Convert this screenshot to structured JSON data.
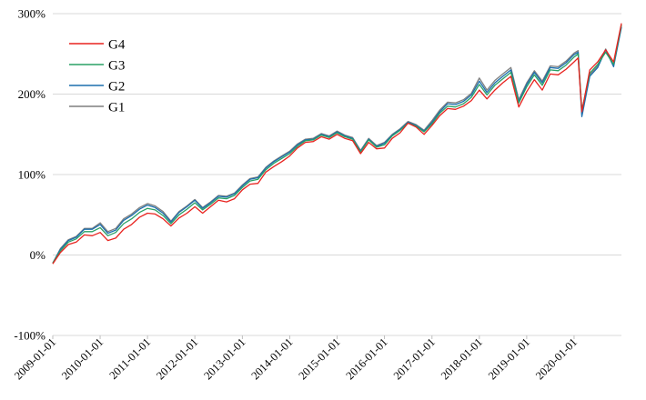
{
  "chart_data": {
    "type": "line",
    "title": "",
    "xlabel": "",
    "ylabel": "",
    "ylim": [
      -100,
      300
    ],
    "y_ticks": [
      -100,
      0,
      100,
      200,
      300
    ],
    "y_tick_labels": [
      "-100%",
      "0%",
      "100%",
      "200%",
      "300%"
    ],
    "x_range": [
      "2009-01-01",
      "2020-12-31"
    ],
    "x_ticks": [
      "2009-01-01",
      "2010-01-01",
      "2011-01-01",
      "2012-01-01",
      "2013-01-01",
      "2014-01-01",
      "2015-01-01",
      "2016-01-01",
      "2017-01-01",
      "2018-01-01",
      "2019-01-01",
      "2020-01-01"
    ],
    "x_tick_labels": [
      "2009-01-01",
      "2010-01-01",
      "2011-01-01",
      "2012-01-01",
      "2013-01-01",
      "2014-01-01",
      "2015-01-01",
      "2016-01-01",
      "2017-01-01",
      "2018-01-01",
      "2019-01-01",
      "2020-01-01"
    ],
    "grid": "horizontal",
    "legend_position": "top-left",
    "colors": {
      "G4": "#e8231f",
      "G3": "#29a065",
      "G2": "#1b6fae",
      "G1": "#7f7f7f"
    },
    "series": [
      {
        "name": "G4",
        "x": [
          "2009-01-01",
          "2009-03-01",
          "2009-05-01",
          "2009-07-01",
          "2009-09-01",
          "2009-11-01",
          "2010-01-01",
          "2010-03-01",
          "2010-05-01",
          "2010-07-01",
          "2010-09-01",
          "2010-11-01",
          "2011-01-01",
          "2011-03-01",
          "2011-05-01",
          "2011-07-01",
          "2011-09-01",
          "2011-11-01",
          "2012-01-01",
          "2012-03-01",
          "2012-05-01",
          "2012-07-01",
          "2012-09-01",
          "2012-11-01",
          "2013-01-01",
          "2013-03-01",
          "2013-05-01",
          "2013-07-01",
          "2013-09-01",
          "2013-11-01",
          "2014-01-01",
          "2014-03-01",
          "2014-05-01",
          "2014-07-01",
          "2014-09-01",
          "2014-11-01",
          "2015-01-01",
          "2015-03-01",
          "2015-05-01",
          "2015-07-01",
          "2015-09-01",
          "2015-11-01",
          "2016-01-01",
          "2016-03-01",
          "2016-05-01",
          "2016-07-01",
          "2016-09-01",
          "2016-11-01",
          "2017-01-01",
          "2017-03-01",
          "2017-05-01",
          "2017-07-01",
          "2017-09-01",
          "2017-11-01",
          "2018-01-01",
          "2018-03-01",
          "2018-05-01",
          "2018-07-01",
          "2018-09-01",
          "2018-11-01",
          "2019-01-01",
          "2019-03-01",
          "2019-05-01",
          "2019-07-01",
          "2019-09-01",
          "2019-11-01",
          "2020-01-01",
          "2020-02-01",
          "2020-03-01",
          "2020-05-01",
          "2020-07-01",
          "2020-09-01",
          "2020-11-01",
          "2020-12-31"
        ],
        "values": [
          -11,
          3,
          13,
          16,
          25,
          24,
          28,
          18,
          21,
          32,
          38,
          47,
          52,
          51,
          45,
          36,
          46,
          52,
          60,
          52,
          60,
          68,
          66,
          70,
          81,
          88,
          89,
          103,
          110,
          116,
          123,
          133,
          140,
          141,
          147,
          144,
          150,
          145,
          142,
          126,
          140,
          132,
          133,
          145,
          152,
          164,
          159,
          150,
          161,
          173,
          182,
          181,
          185,
          192,
          205,
          194,
          205,
          214,
          222,
          184,
          203,
          218,
          205,
          225,
          224,
          231,
          240,
          245,
          178,
          230,
          240,
          255,
          240,
          288
        ]
      },
      {
        "name": "G3",
        "x": [
          "2009-01-01",
          "2009-03-01",
          "2009-05-01",
          "2009-07-01",
          "2009-09-01",
          "2009-11-01",
          "2010-01-01",
          "2010-03-01",
          "2010-05-01",
          "2010-07-01",
          "2010-09-01",
          "2010-11-01",
          "2011-01-01",
          "2011-03-01",
          "2011-05-01",
          "2011-07-01",
          "2011-09-01",
          "2011-11-01",
          "2012-01-01",
          "2012-03-01",
          "2012-05-01",
          "2012-07-01",
          "2012-09-01",
          "2012-11-01",
          "2013-01-01",
          "2013-03-01",
          "2013-05-01",
          "2013-07-01",
          "2013-09-01",
          "2013-11-01",
          "2014-01-01",
          "2014-03-01",
          "2014-05-01",
          "2014-07-01",
          "2014-09-01",
          "2014-11-01",
          "2015-01-01",
          "2015-03-01",
          "2015-05-01",
          "2015-07-01",
          "2015-09-01",
          "2015-11-01",
          "2016-01-01",
          "2016-03-01",
          "2016-05-01",
          "2016-07-01",
          "2016-09-01",
          "2016-11-01",
          "2017-01-01",
          "2017-03-01",
          "2017-05-01",
          "2017-07-01",
          "2017-09-01",
          "2017-11-01",
          "2018-01-01",
          "2018-03-01",
          "2018-05-01",
          "2018-07-01",
          "2018-09-01",
          "2018-11-01",
          "2019-01-01",
          "2019-03-01",
          "2019-05-01",
          "2019-07-01",
          "2019-09-01",
          "2019-11-01",
          "2020-01-01",
          "2020-02-01",
          "2020-03-01",
          "2020-05-01",
          "2020-07-01",
          "2020-09-01",
          "2020-11-01",
          "2020-12-31"
        ],
        "values": [
          -10,
          5,
          16,
          20,
          29,
          29,
          34,
          24,
          28,
          39,
          45,
          53,
          58,
          56,
          49,
          39,
          50,
          57,
          65,
          56,
          63,
          71,
          70,
          74,
          84,
          92,
          94,
          106,
          114,
          120,
          126,
          135,
          142,
          143,
          149,
          146,
          152,
          147,
          144,
          128,
          143,
          134,
          137,
          148,
          155,
          164,
          160,
          153,
          163,
          176,
          185,
          184,
          188,
          196,
          212,
          199,
          211,
          219,
          227,
          189,
          209,
          224,
          211,
          230,
          229,
          236,
          246,
          250,
          180,
          226,
          237,
          252,
          237,
          286
        ]
      },
      {
        "name": "G2",
        "x": [
          "2009-01-01",
          "2009-03-01",
          "2009-05-01",
          "2009-07-01",
          "2009-09-01",
          "2009-11-01",
          "2010-01-01",
          "2010-03-01",
          "2010-05-01",
          "2010-07-01",
          "2010-09-01",
          "2010-11-01",
          "2011-01-01",
          "2011-03-01",
          "2011-05-01",
          "2011-07-01",
          "2011-09-01",
          "2011-11-01",
          "2012-01-01",
          "2012-03-01",
          "2012-05-01",
          "2012-07-01",
          "2012-09-01",
          "2012-11-01",
          "2013-01-01",
          "2013-03-01",
          "2013-05-01",
          "2013-07-01",
          "2013-09-01",
          "2013-11-01",
          "2014-01-01",
          "2014-03-01",
          "2014-05-01",
          "2014-07-01",
          "2014-09-01",
          "2014-11-01",
          "2015-01-01",
          "2015-03-01",
          "2015-05-01",
          "2015-07-01",
          "2015-09-01",
          "2015-11-01",
          "2016-01-01",
          "2016-03-01",
          "2016-05-01",
          "2016-07-01",
          "2016-09-01",
          "2016-11-01",
          "2017-01-01",
          "2017-03-01",
          "2017-05-01",
          "2017-07-01",
          "2017-09-01",
          "2017-11-01",
          "2018-01-01",
          "2018-03-01",
          "2018-05-01",
          "2018-07-01",
          "2018-09-01",
          "2018-11-01",
          "2019-01-01",
          "2019-03-01",
          "2019-05-01",
          "2019-07-01",
          "2019-09-01",
          "2019-11-01",
          "2020-01-01",
          "2020-02-01",
          "2020-03-01",
          "2020-05-01",
          "2020-07-01",
          "2020-09-01",
          "2020-11-01",
          "2020-12-31"
        ],
        "values": [
          -10,
          7,
          18,
          22,
          32,
          32,
          38,
          27,
          31,
          43,
          49,
          57,
          62,
          59,
          52,
          41,
          53,
          60,
          68,
          58,
          65,
          73,
          72,
          76,
          86,
          94,
          96,
          108,
          116,
          122,
          128,
          137,
          143,
          144,
          150,
          147,
          153,
          148,
          145,
          129,
          144,
          135,
          139,
          149,
          156,
          165,
          161,
          154,
          165,
          178,
          188,
          187,
          191,
          199,
          216,
          202,
          214,
          222,
          230,
          191,
          212,
          227,
          214,
          233,
          232,
          239,
          249,
          252,
          172,
          222,
          233,
          255,
          234,
          283
        ]
      },
      {
        "name": "G1",
        "x": [
          "2009-01-01",
          "2009-03-01",
          "2009-05-01",
          "2009-07-01",
          "2009-09-01",
          "2009-11-01",
          "2010-01-01",
          "2010-03-01",
          "2010-05-01",
          "2010-07-01",
          "2010-09-01",
          "2010-11-01",
          "2011-01-01",
          "2011-03-01",
          "2011-05-01",
          "2011-07-01",
          "2011-09-01",
          "2011-11-01",
          "2012-01-01",
          "2012-03-01",
          "2012-05-01",
          "2012-07-01",
          "2012-09-01",
          "2012-11-01",
          "2013-01-01",
          "2013-03-01",
          "2013-05-01",
          "2013-07-01",
          "2013-09-01",
          "2013-11-01",
          "2014-01-01",
          "2014-03-01",
          "2014-05-01",
          "2014-07-01",
          "2014-09-01",
          "2014-11-01",
          "2015-01-01",
          "2015-03-01",
          "2015-05-01",
          "2015-07-01",
          "2015-09-01",
          "2015-11-01",
          "2016-01-01",
          "2016-03-01",
          "2016-05-01",
          "2016-07-01",
          "2016-09-01",
          "2016-11-01",
          "2017-01-01",
          "2017-03-01",
          "2017-05-01",
          "2017-07-01",
          "2017-09-01",
          "2017-11-01",
          "2018-01-01",
          "2018-03-01",
          "2018-05-01",
          "2018-07-01",
          "2018-09-01",
          "2018-11-01",
          "2019-01-01",
          "2019-03-01",
          "2019-05-01",
          "2019-07-01",
          "2019-09-01",
          "2019-11-01",
          "2020-01-01",
          "2020-02-01",
          "2020-03-01",
          "2020-05-01",
          "2020-07-01",
          "2020-09-01",
          "2020-11-01",
          "2020-12-31"
        ],
        "values": [
          -10,
          8,
          19,
          23,
          33,
          33,
          40,
          29,
          33,
          45,
          51,
          59,
          64,
          61,
          54,
          42,
          54,
          61,
          69,
          59,
          66,
          74,
          73,
          77,
          87,
          95,
          97,
          109,
          117,
          123,
          129,
          138,
          144,
          145,
          151,
          148,
          154,
          149,
          146,
          130,
          145,
          136,
          140,
          150,
          157,
          166,
          162,
          155,
          167,
          180,
          190,
          189,
          193,
          201,
          220,
          205,
          217,
          225,
          233,
          193,
          214,
          229,
          216,
          235,
          234,
          241,
          251,
          254,
          175,
          224,
          235,
          256,
          236,
          285
        ]
      }
    ]
  }
}
